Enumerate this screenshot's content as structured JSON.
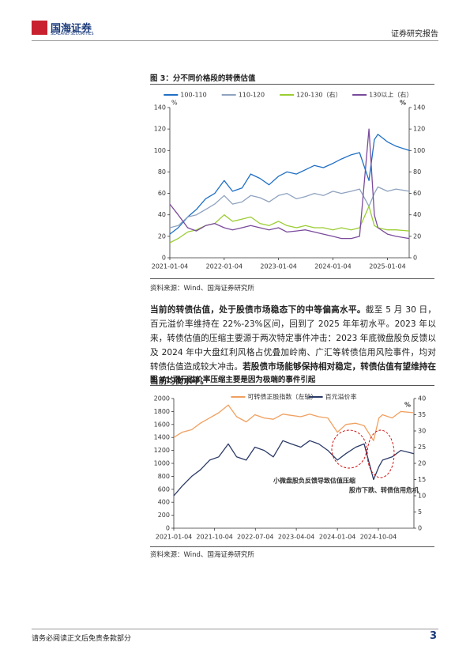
{
  "header": {
    "logo_cn": "国海证券",
    "logo_en": "SEALAND SECURITIES",
    "report_type": "证券研究报告"
  },
  "figures": [
    {
      "title": "图 3：分不同价格段的转债估值",
      "source": "资料来源：Wind、国海证券研究所",
      "chart_data": {
        "type": "line",
        "ylabel": "%",
        "y2label": "%",
        "x": [
          "2021-01-04",
          "2021-03-01",
          "2021-05-04",
          "2021-07-01",
          "2021-09-01",
          "2021-11-01",
          "2022-01-04",
          "2022-03-01",
          "2022-05-04",
          "2022-07-01",
          "2022-09-01",
          "2022-11-01",
          "2023-01-04",
          "2023-03-01",
          "2023-05-04",
          "2023-07-03",
          "2023-09-01",
          "2023-11-01",
          "2024-01-04",
          "2024-03-01",
          "2024-05-06",
          "2024-07-01",
          "2024-09-02",
          "2024-10-08",
          "2024-11-01",
          "2025-01-04",
          "2025-03-03",
          "2025-05-30"
        ],
        "xlim": [
          "2021-01-04",
          "2025-05-30"
        ],
        "xticks": [
          "2021-01-04",
          "2022-01-04",
          "2023-01-04",
          "2024-01-04",
          "2025-01-04"
        ],
        "ylim": [
          0,
          140
        ],
        "yticks": [
          0,
          20,
          40,
          60,
          80,
          100,
          120,
          140
        ],
        "y2lim": [
          0,
          140
        ],
        "y2ticks": [
          0,
          20,
          40,
          60,
          80,
          100,
          120,
          140
        ],
        "legend": "top",
        "series": [
          {
            "name": "100-110",
            "color": "#1f6fc5",
            "values": [
              22,
              28,
              38,
              45,
              55,
              60,
              72,
              62,
              65,
              78,
              74,
              68,
              76,
              80,
              78,
              82,
              86,
              84,
              88,
              92,
              96,
              98,
              72,
              110,
              115,
              108,
              104,
              100
            ]
          },
          {
            "name": "110-120",
            "color": "#8fa3bf",
            "values": [
              28,
              30,
              38,
              40,
              45,
              50,
              58,
              50,
              52,
              58,
              56,
              52,
              58,
              60,
              55,
              57,
              60,
              58,
              62,
              60,
              62,
              64,
              48,
              60,
              66,
              62,
              64,
              62
            ]
          },
          {
            "name": "120-130（右）",
            "color": "#9acd32",
            "axis": "y2",
            "values": [
              14,
              18,
              24,
              26,
              30,
              32,
              40,
              34,
              36,
              38,
              32,
              30,
              34,
              30,
              28,
              30,
              28,
              28,
              26,
              28,
              26,
              28,
              48,
              30,
              28,
              26,
              26,
              25
            ]
          },
          {
            "name": "130以上（右）",
            "color": "#7a4b9c",
            "axis": "y2",
            "values": [
              50,
              40,
              28,
              25,
              30,
              32,
              28,
              26,
              28,
              30,
              28,
              26,
              28,
              24,
              25,
              26,
              24,
              22,
              20,
              18,
              18,
              20,
              120,
              40,
              28,
              22,
              20,
              18
            ]
          }
        ]
      }
    },
    {
      "title": "图 4：百元溢价率压缩主要是因为极端的事件引起",
      "source": "资料来源：Wind、国海证券研究所",
      "chart_data": {
        "type": "line",
        "y2label": "%",
        "x": [
          "2021-01-04",
          "2021-03-01",
          "2021-05-04",
          "2021-07-01",
          "2021-09-01",
          "2021-11-01",
          "2022-01-04",
          "2022-03-01",
          "2022-05-04",
          "2022-07-01",
          "2022-09-01",
          "2022-11-01",
          "2023-01-04",
          "2023-03-01",
          "2023-05-04",
          "2023-07-03",
          "2023-09-01",
          "2023-11-01",
          "2024-01-04",
          "2024-03-01",
          "2024-05-06",
          "2024-07-01",
          "2024-09-02",
          "2024-10-08",
          "2024-11-01",
          "2025-01-04",
          "2025-03-03",
          "2025-05-30"
        ],
        "xlim": [
          "2021-01-04",
          "2025-05-30"
        ],
        "xticks": [
          "2021-01-04",
          "2021-10-04",
          "2022-07-04",
          "2023-04-04",
          "2024-01-04",
          "2024-10-04"
        ],
        "ylim": [
          0,
          2000
        ],
        "yticks": [
          0,
          200,
          400,
          600,
          800,
          1000,
          1200,
          1400,
          1600,
          1800,
          2000
        ],
        "y2lim": [
          0,
          40
        ],
        "y2ticks": [
          0,
          5,
          10,
          15,
          20,
          25,
          30,
          35,
          40
        ],
        "legend": "top",
        "annotations": [
          "小微盘股负反馈导致估值压缩",
          "股市下跌、转债信用危机"
        ],
        "series": [
          {
            "name": "可转债正股指数（左轴）",
            "color": "#f0a060",
            "values": [
              1400,
              1480,
              1520,
              1620,
              1700,
              1780,
              1900,
              1720,
              1640,
              1750,
              1700,
              1680,
              1760,
              1740,
              1720,
              1760,
              1720,
              1700,
              1480,
              1600,
              1620,
              1580,
              1350,
              1700,
              1750,
              1700,
              1800,
              1780
            ]
          },
          {
            "name": "百元溢价率",
            "color": "#2b3a67",
            "axis": "y2",
            "values": [
              10,
              13,
              16,
              18,
              21,
              22,
              26,
              22,
              21,
              25,
              24,
              22,
              27,
              26,
              25,
              27,
              26,
              24,
              21,
              23,
              25,
              26,
              15,
              19,
              21,
              22,
              24,
              23
            ]
          }
        ]
      }
    }
  ],
  "paragraph": {
    "lead": "当前的转债估值，处于股债市场稳态下的中等偏高水平。",
    "body": "截至 5 月 30 日，百元溢价率维持在 22%-23%区间，回到了 2025 年年初水平。2023 年以来，转债估值的压缩主要源于两次特定事件冲击：2023 年底微盘股负反馈以及 2024 年中大盘红利风格占优叠加岭南、广汇等转债信用风险事件，均对转债估值造成较大冲击。",
    "tail": "若股债市场能够保持相对稳定，转债估值有望维持在当前均衡水平。"
  },
  "footer": {
    "disclaimer": "请务必阅读正文后免责条款部分",
    "page": "3"
  }
}
